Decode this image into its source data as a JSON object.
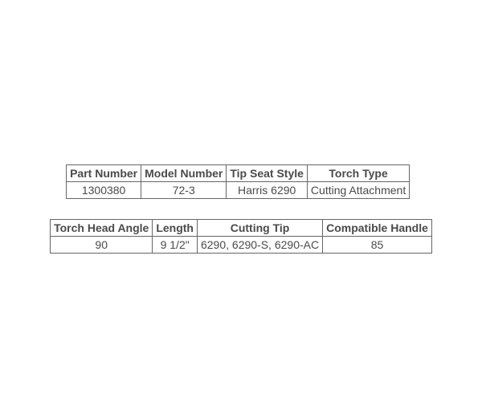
{
  "table1": {
    "type": "table",
    "columns": [
      "Part Number",
      "Model Number",
      "Tip Seat Style",
      "Torch Type"
    ],
    "rows": [
      [
        "1300380",
        "72-3",
        "Harris 6290",
        "Cutting Attachment"
      ]
    ],
    "border_color": "#666666",
    "text_color": "#4a4a4a",
    "header_fontsize": 14,
    "cell_fontsize": 14,
    "background_color": "#ffffff"
  },
  "table2": {
    "type": "table",
    "columns": [
      "Torch Head Angle",
      "Length",
      "Cutting Tip",
      "Compatible Handle"
    ],
    "rows": [
      [
        "90",
        "9 1/2\"",
        "6290, 6290-S, 6290-AC",
        "85"
      ]
    ],
    "border_color": "#666666",
    "text_color": "#4a4a4a",
    "header_fontsize": 14,
    "cell_fontsize": 14,
    "background_color": "#ffffff"
  }
}
